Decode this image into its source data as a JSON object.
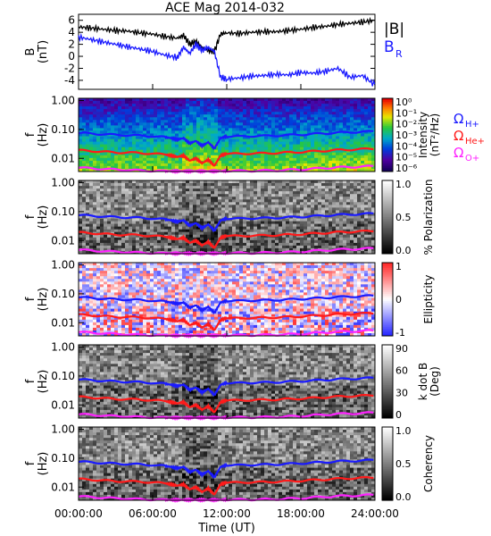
{
  "figure": {
    "title": "ACE Mag 2014-032",
    "xlabel": "Time (UT)",
    "xticks": [
      "00:00:00",
      "06:00:00",
      "12:00:00",
      "18:00:00",
      "24:00:00"
    ],
    "xtick_hours": [
      0,
      6,
      12,
      18,
      24
    ]
  },
  "colors": {
    "B_total": "#000000",
    "B_R": "#1a1aff",
    "H_plus": "#1a1aff",
    "He_plus": "#ff1a1a",
    "O_plus": "#ff22ff"
  },
  "legend": {
    "B_total": "|B|",
    "B_R": "B",
    "B_R_sub": "R",
    "omega": "Ω",
    "H_sub": "H+",
    "He_sub": "He+",
    "O_sub": "O+"
  },
  "chart_data": [
    {
      "type": "line",
      "panel": "B",
      "ylabel": "B",
      "yunit": "(nT)",
      "ylim": [
        -5.5,
        7
      ],
      "yticks": [
        -4,
        -2,
        0,
        2,
        4,
        6
      ],
      "xlim": [
        0,
        24
      ],
      "series": [
        {
          "name": "|B|",
          "x": [
            0,
            1,
            2,
            3,
            4,
            5,
            6,
            7,
            8,
            8.5,
            9,
            9.5,
            10,
            10.5,
            11,
            11.5,
            12,
            13,
            14,
            15,
            16,
            17,
            18,
            19,
            20,
            21,
            22,
            23,
            24
          ],
          "y": [
            4.9,
            4.7,
            4.5,
            4.3,
            4.2,
            3.9,
            3.7,
            3.3,
            3.0,
            3.5,
            2.0,
            2.5,
            1.5,
            1.0,
            0.8,
            3.7,
            3.9,
            3.8,
            4.0,
            4.1,
            4.1,
            4.3,
            4.5,
            4.8,
            5.0,
            5.3,
            5.5,
            5.7,
            6.0
          ]
        },
        {
          "name": "B_R",
          "x": [
            0,
            1,
            2,
            3,
            4,
            5,
            6,
            7,
            8,
            8.5,
            9,
            9.5,
            10,
            10.5,
            11,
            11.5,
            12,
            13,
            14,
            15,
            16,
            17,
            18,
            19,
            20,
            21,
            22,
            23,
            24
          ],
          "y": [
            3.2,
            2.8,
            2.4,
            2.0,
            1.6,
            1.2,
            0.8,
            0.2,
            -0.2,
            1.5,
            0.5,
            2.0,
            1.0,
            1.5,
            0.8,
            -3.5,
            -3.8,
            -3.6,
            -3.3,
            -3.2,
            -3.0,
            -3.1,
            -2.7,
            -2.8,
            -2.5,
            -2.0,
            -3.5,
            -3.2,
            -4.8
          ]
        }
      ]
    },
    {
      "type": "heatmap",
      "panel": "Intensity",
      "ylabel": "f",
      "yunit": "(Hz)",
      "colorbar_label": "Intensity",
      "colorbar_unit": "(nT²/Hz)",
      "colorbar_ticks": [
        "10⁰",
        "10⁻¹",
        "10⁻²",
        "10⁻³",
        "10⁻⁴",
        "10⁻⁵",
        "10⁻⁶"
      ]
    },
    {
      "type": "heatmap",
      "panel": "Polarization",
      "ylabel": "f",
      "yunit": "(Hz)",
      "colorbar_label": "% Polarization",
      "colorbar_ticks": [
        "1.0",
        "0.5",
        "0.0"
      ]
    },
    {
      "type": "heatmap",
      "panel": "Ellipticity",
      "ylabel": "f",
      "yunit": "(Hz)",
      "colorbar_label": "Ellipticity",
      "colorbar_ticks": [
        "1",
        "0",
        "-1"
      ]
    },
    {
      "type": "heatmap",
      "panel": "kdotB",
      "ylabel": "f",
      "yunit": "(Hz)",
      "colorbar_label": "k dot B",
      "colorbar_unit": "(Deg)",
      "colorbar_ticks": [
        "90",
        "60",
        "30",
        "0"
      ]
    },
    {
      "type": "heatmap",
      "panel": "Coherency",
      "ylabel": "f",
      "yunit": "(Hz)",
      "colorbar_label": "Coherency",
      "colorbar_ticks": [
        "1.0",
        "0.5",
        "0.0"
      ]
    }
  ],
  "freq_axis": {
    "ylim": [
      0.0035,
      1.2
    ],
    "yticks": [
      1.0,
      0.1,
      0.01
    ],
    "ytick_labels": [
      "1.00",
      "0.10",
      "0.01"
    ]
  },
  "gyro_lines": {
    "x": [
      0,
      1,
      2,
      3,
      4,
      5,
      6,
      7,
      7.5,
      8,
      8.5,
      9,
      9.5,
      10,
      10.5,
      11,
      11.5,
      12,
      13,
      14,
      15,
      16,
      17,
      18,
      19,
      20,
      21,
      22,
      23,
      24
    ],
    "H_plus": [
      0.076,
      0.072,
      0.068,
      0.065,
      0.063,
      0.061,
      0.058,
      0.054,
      0.05,
      0.045,
      0.05,
      0.033,
      0.04,
      0.027,
      0.036,
      0.022,
      0.05,
      0.058,
      0.057,
      0.059,
      0.06,
      0.061,
      0.064,
      0.066,
      0.07,
      0.073,
      0.078,
      0.08,
      0.083,
      0.087
    ],
    "He_plus": [
      0.019,
      0.018,
      0.017,
      0.016,
      0.0158,
      0.0153,
      0.0145,
      0.0135,
      0.0125,
      0.0112,
      0.0125,
      0.0083,
      0.01,
      0.0068,
      0.009,
      0.0055,
      0.0125,
      0.0145,
      0.0143,
      0.0148,
      0.015,
      0.0153,
      0.016,
      0.0165,
      0.0175,
      0.0183,
      0.0195,
      0.02,
      0.0208,
      0.0218
    ],
    "O_plus": [
      0.0048,
      0.0045,
      0.0043,
      0.0041,
      0.004,
      0.0038,
      0.0037,
      0.0036,
      0.0036,
      0.0036,
      0.0036,
      0.0036,
      0.0036,
      0.0036,
      0.0036,
      0.0036,
      0.0036,
      0.0037,
      0.0037,
      0.0037,
      0.0038,
      0.0038,
      0.004,
      0.0041,
      0.0044,
      0.0046,
      0.0049,
      0.005,
      0.0052,
      0.0054
    ]
  }
}
